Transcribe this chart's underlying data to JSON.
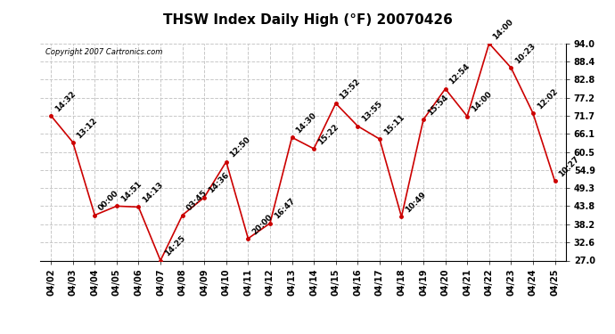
{
  "title": "THSW Index Daily High (°F) 20070426",
  "copyright": "Copyright 2007 Cartronics.com",
  "dates": [
    "04/02",
    "04/03",
    "04/04",
    "04/05",
    "04/06",
    "04/07",
    "04/08",
    "04/09",
    "04/10",
    "04/11",
    "04/12",
    "04/13",
    "04/14",
    "04/15",
    "04/16",
    "04/17",
    "04/18",
    "04/19",
    "04/20",
    "04/21",
    "04/22",
    "04/23",
    "04/24",
    "04/25"
  ],
  "values": [
    71.7,
    63.5,
    41.0,
    43.8,
    43.5,
    27.0,
    41.0,
    46.5,
    57.5,
    33.8,
    38.5,
    65.0,
    61.5,
    75.5,
    68.5,
    64.5,
    40.5,
    70.5,
    80.0,
    71.5,
    94.0,
    86.5,
    72.5,
    51.5
  ],
  "times": [
    "14:32",
    "13:12",
    "00:00",
    "14:51",
    "14:13",
    "14:25",
    "03:45",
    "14:36",
    "12:50",
    "20:00",
    "16:47",
    "14:30",
    "15:22",
    "13:52",
    "13:55",
    "15:11",
    "10:49",
    "15:54",
    "12:54",
    "14:00",
    "14:00",
    "10:23",
    "12:02",
    "10:27"
  ],
  "line_color": "#cc0000",
  "marker_color": "#cc0000",
  "background_color": "#ffffff",
  "grid_color": "#c8c8c8",
  "ylim": [
    27.0,
    94.0
  ],
  "yticks": [
    27.0,
    32.6,
    38.2,
    43.8,
    49.3,
    54.9,
    60.5,
    66.1,
    71.7,
    77.2,
    82.8,
    88.4,
    94.0
  ],
  "title_fontsize": 11,
  "label_fontsize": 6.5,
  "copyright_fontsize": 6,
  "tick_fontsize": 7
}
